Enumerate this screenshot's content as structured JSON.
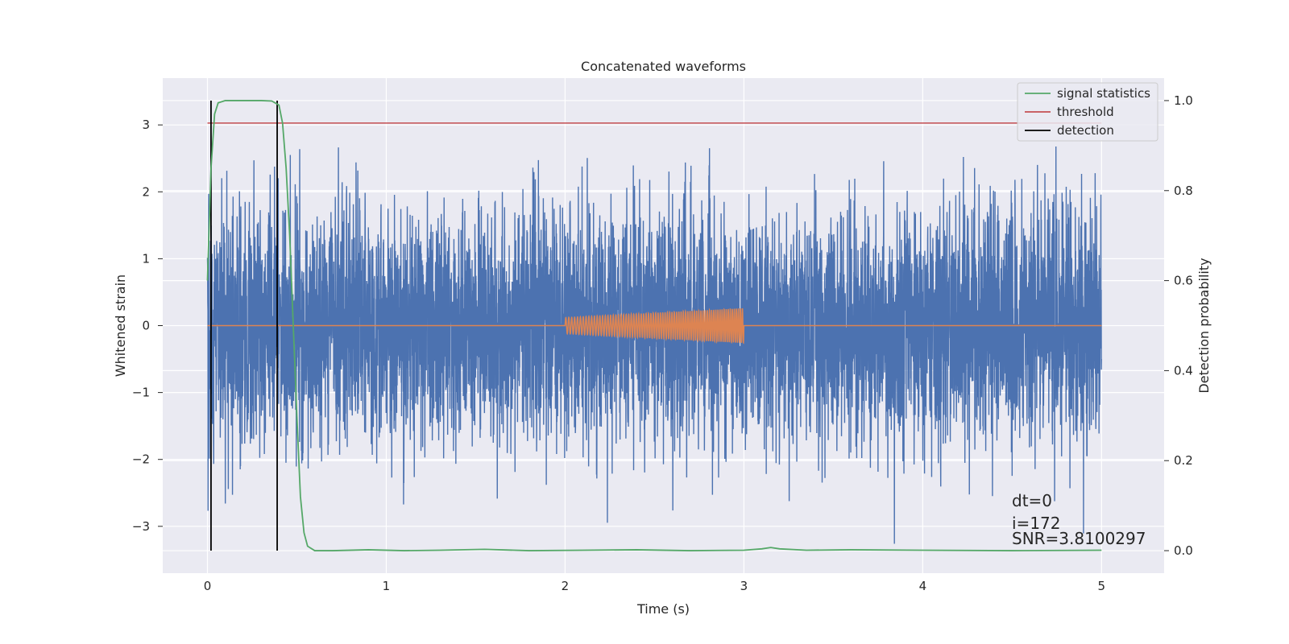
{
  "chart_data": {
    "type": "line",
    "title": "Concatenated waveforms",
    "xlabel": "Time (s)",
    "ylabel_left": "Whitened strain",
    "ylabel_right": "Detection probability",
    "xlim": [
      -0.25,
      5.35
    ],
    "ylim_left": [
      -3.7,
      3.7
    ],
    "ylim_right": [
      -0.05,
      1.05
    ],
    "x_ticks": [
      0,
      1,
      2,
      3,
      4,
      5
    ],
    "x_tick_labels": [
      "0",
      "1",
      "2",
      "3",
      "4",
      "5"
    ],
    "y_left_ticks": [
      -3,
      -2,
      -1,
      0,
      1,
      2,
      3
    ],
    "y_left_tick_labels": [
      "−3",
      "−2",
      "−1",
      "0",
      "1",
      "2",
      "3"
    ],
    "y_right_ticks": [
      0.0,
      0.2,
      0.4,
      0.6,
      0.8,
      1.0
    ],
    "y_right_tick_labels": [
      "0.0",
      "0.2",
      "0.4",
      "0.6",
      "0.8",
      "1.0"
    ],
    "grid": true,
    "legend_position": "top-right",
    "series": [
      {
        "name": "",
        "kind": "noise",
        "axis": "left",
        "color": "#4c72b0",
        "x_range": [
          0,
          5
        ],
        "approx_envelope": [
          -3.4,
          3.4
        ]
      },
      {
        "name": "",
        "kind": "chirp",
        "axis": "left",
        "color": "#dd8452",
        "x_range": [
          0,
          5
        ],
        "chirp_start": 2.0,
        "chirp_end": 3.0,
        "amplitude_start": 0.12,
        "amplitude_end": 0.26
      },
      {
        "name": "signal statistics",
        "axis": "right",
        "color": "#55a868",
        "x": [
          0,
          0.02,
          0.04,
          0.06,
          0.1,
          0.2,
          0.3,
          0.36,
          0.4,
          0.42,
          0.44,
          0.46,
          0.48,
          0.5,
          0.52,
          0.54,
          0.56,
          0.6,
          0.7,
          0.9,
          1.1,
          1.3,
          1.55,
          1.8,
          2.1,
          2.4,
          2.7,
          3.0,
          3.1,
          3.15,
          3.2,
          3.35,
          3.6,
          4.0,
          4.5,
          5.0
        ],
        "y": [
          0.6,
          0.85,
          0.97,
          0.995,
          1.0,
          1.0,
          1.0,
          0.999,
          0.99,
          0.95,
          0.85,
          0.7,
          0.5,
          0.3,
          0.12,
          0.04,
          0.01,
          0.0,
          0.0,
          0.002,
          0.0,
          0.001,
          0.003,
          0.0,
          0.001,
          0.002,
          0.0,
          0.001,
          0.004,
          0.007,
          0.004,
          0.001,
          0.002,
          0.001,
          0.0,
          0.001
        ]
      },
      {
        "name": "threshold",
        "axis": "right",
        "color": "#c44e52",
        "x": [
          0,
          5
        ],
        "y": [
          0.95,
          0.95
        ]
      },
      {
        "name": "detection",
        "axis": "right",
        "color": "#000000",
        "vlines": [
          0.02,
          0.39
        ],
        "y_range": [
          0,
          1
        ]
      }
    ],
    "annotations": [
      "dt=0",
      "i=172",
      "SNR=3.8100297"
    ]
  }
}
